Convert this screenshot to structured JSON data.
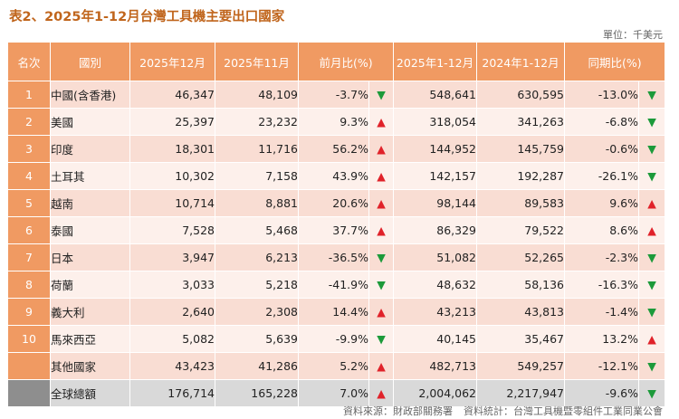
{
  "title": "表2、2025年1-12月台灣工具機主要出口國家",
  "unit": "單位：千美元",
  "headers": {
    "rank": "名次",
    "country": "國別",
    "dec2025": "2025年12月",
    "nov2025": "2025年11月",
    "mom": "前月比(%)",
    "ytd2025": "2025年1-12月",
    "ytd2024": "2024年1-12月",
    "yoy": "同期比(%)"
  },
  "rows": [
    {
      "rank": "1",
      "country": "中國(含香港)",
      "dec2025": "46,347",
      "nov2025": "48,109",
      "mom": "-3.7%",
      "mom_arrow": "▼",
      "ytd2025": "548,641",
      "ytd2024": "630,595",
      "yoy": "-13.0%",
      "yoy_arrow": "▼"
    },
    {
      "rank": "2",
      "country": "美國",
      "dec2025": "25,397",
      "nov2025": "23,232",
      "mom": "9.3%",
      "mom_arrow": "▲",
      "ytd2025": "318,054",
      "ytd2024": "341,263",
      "yoy": "-6.8%",
      "yoy_arrow": "▼"
    },
    {
      "rank": "3",
      "country": "印度",
      "dec2025": "18,301",
      "nov2025": "11,716",
      "mom": "56.2%",
      "mom_arrow": "▲",
      "ytd2025": "144,952",
      "ytd2024": "145,759",
      "yoy": "-0.6%",
      "yoy_arrow": "▼"
    },
    {
      "rank": "4",
      "country": "土耳其",
      "dec2025": "10,302",
      "nov2025": "7,158",
      "mom": "43.9%",
      "mom_arrow": "▲",
      "ytd2025": "142,157",
      "ytd2024": "192,287",
      "yoy": "-26.1%",
      "yoy_arrow": "▼"
    },
    {
      "rank": "5",
      "country": "越南",
      "dec2025": "10,714",
      "nov2025": "8,881",
      "mom": "20.6%",
      "mom_arrow": "▲",
      "ytd2025": "98,144",
      "ytd2024": "89,583",
      "yoy": "9.6%",
      "yoy_arrow": "▲"
    },
    {
      "rank": "6",
      "country": "泰國",
      "dec2025": "7,528",
      "nov2025": "5,468",
      "mom": "37.7%",
      "mom_arrow": "▲",
      "ytd2025": "86,329",
      "ytd2024": "79,522",
      "yoy": "8.6%",
      "yoy_arrow": "▲"
    },
    {
      "rank": "7",
      "country": "日本",
      "dec2025": "3,947",
      "nov2025": "6,213",
      "mom": "-36.5%",
      "mom_arrow": "▼",
      "ytd2025": "51,082",
      "ytd2024": "52,265",
      "yoy": "-2.3%",
      "yoy_arrow": "▼"
    },
    {
      "rank": "8",
      "country": "荷蘭",
      "dec2025": "3,033",
      "nov2025": "5,218",
      "mom": "-41.9%",
      "mom_arrow": "▼",
      "ytd2025": "48,632",
      "ytd2024": "58,136",
      "yoy": "-16.3%",
      "yoy_arrow": "▼"
    },
    {
      "rank": "9",
      "country": "義大利",
      "dec2025": "2,640",
      "nov2025": "2,308",
      "mom": "14.4%",
      "mom_arrow": "▲",
      "ytd2025": "43,213",
      "ytd2024": "43,813",
      "yoy": "-1.4%",
      "yoy_arrow": "▼"
    },
    {
      "rank": "10",
      "country": "馬來西亞",
      "dec2025": "5,082",
      "nov2025": "5,639",
      "mom": "-9.9%",
      "mom_arrow": "▼",
      "ytd2025": "40,145",
      "ytd2024": "35,467",
      "yoy": "13.2%",
      "yoy_arrow": "▲"
    },
    {
      "rank": "",
      "country": "其他國家",
      "dec2025": "43,423",
      "nov2025": "41,286",
      "mom": "5.2%",
      "mom_arrow": "▲",
      "ytd2025": "482,713",
      "ytd2024": "549,257",
      "yoy": "-12.1%",
      "yoy_arrow": "▼"
    }
  ],
  "total": {
    "rank": "",
    "country": "全球總額",
    "dec2025": "176,714",
    "nov2025": "165,228",
    "mom": "7.0%",
    "mom_arrow": "▲",
    "ytd2025": "2,004,062",
    "ytd2024": "2,217,947",
    "yoy": "-9.6%",
    "yoy_arrow": "▼"
  },
  "source": {
    "primary": "資料來源：財政部關務署",
    "secondary": "資料統計：台灣工具機暨零組件工業同業公會"
  },
  "colors": {
    "header_bg": "#f09a62",
    "row_odd": "#f9ddd3",
    "row_even": "#fdf0eb",
    "total_rank_bg": "#8e8e8e",
    "total_row_bg": "#d9d9d9",
    "up_arrow": "#e0222a",
    "down_arrow": "#1c9a3a"
  }
}
